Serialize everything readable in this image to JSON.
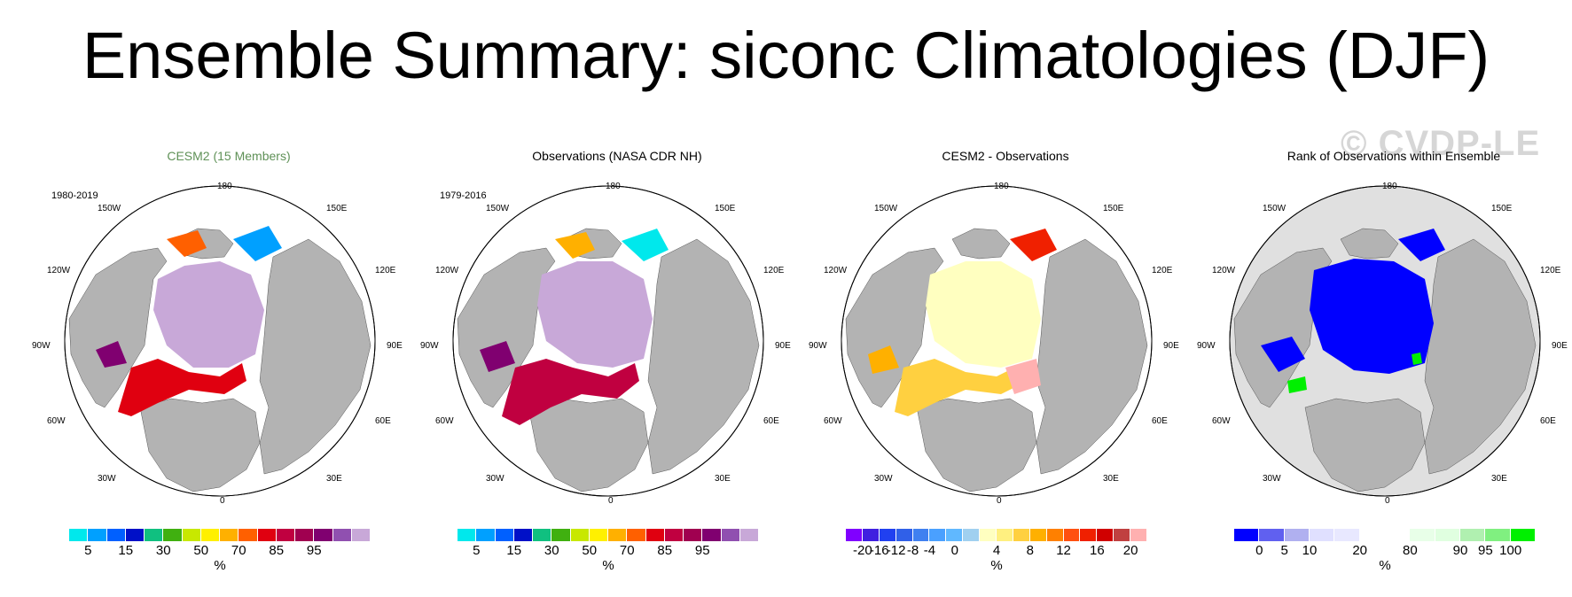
{
  "title": "Ensemble Summary: siconc Climatologies (DJF)",
  "watermark": "© CVDP-LE",
  "lon_labels": {
    "n180": "180",
    "n150w": "150W",
    "n150e": "150E",
    "n120w": "120W",
    "n120e": "120E",
    "n90w": "90W",
    "n90e": "90E",
    "n60w": "60W",
    "n60e": "60E",
    "n30w": "30W",
    "n30e": "30E",
    "n0": "0"
  },
  "colors": {
    "land": "#b3b3b3",
    "ocean": "#ffffff",
    "title_green": "#5f9157"
  },
  "panels": [
    {
      "title": "CESM2 (15 Members)",
      "period": "1980-2019",
      "units": "%",
      "colorbar": [
        "#00e8ec",
        "#00a0ff",
        "#0060ff",
        "#0010c8",
        "#10c080",
        "#40b010",
        "#c8e800",
        "#fff000",
        "#ffb000",
        "#ff6000",
        "#e00010",
        "#c00040",
        "#a00050",
        "#800070",
        "#9050b0",
        "#c8a8d8"
      ],
      "ticks": [
        {
          "pos": 1,
          "label": "5"
        },
        {
          "pos": 3,
          "label": "15"
        },
        {
          "pos": 5,
          "label": "30"
        },
        {
          "pos": 7,
          "label": "50"
        },
        {
          "pos": 9,
          "label": "70"
        },
        {
          "pos": 11,
          "label": "85"
        },
        {
          "pos": 13,
          "label": "95"
        }
      ]
    },
    {
      "title": "Observations (NASA CDR NH)",
      "period": "1979-2016",
      "units": "%",
      "colorbar": [
        "#00e8ec",
        "#00a0ff",
        "#0060ff",
        "#0010c8",
        "#10c080",
        "#40b010",
        "#c8e800",
        "#fff000",
        "#ffb000",
        "#ff6000",
        "#e00010",
        "#c00040",
        "#a00050",
        "#800070",
        "#9050b0",
        "#c8a8d8"
      ],
      "ticks": [
        {
          "pos": 1,
          "label": "5"
        },
        {
          "pos": 3,
          "label": "15"
        },
        {
          "pos": 5,
          "label": "30"
        },
        {
          "pos": 7,
          "label": "50"
        },
        {
          "pos": 9,
          "label": "70"
        },
        {
          "pos": 11,
          "label": "85"
        },
        {
          "pos": 13,
          "label": "95"
        }
      ]
    },
    {
      "title": "CESM2 - Observations",
      "period": "",
      "units": "%",
      "colorbar": [
        "#8000ff",
        "#4020e0",
        "#2040f0",
        "#3060e8",
        "#4080f0",
        "#4aa0ff",
        "#60b8ff",
        "#a0d0f0",
        "#ffffc0",
        "#fff080",
        "#ffd040",
        "#ffb000",
        "#ff8000",
        "#ff5010",
        "#f02000",
        "#d00000",
        "#c04040",
        "#ffb0b0"
      ],
      "ticks": [
        {
          "pos": 1,
          "label": "-20"
        },
        {
          "pos": 2,
          "label": "-16"
        },
        {
          "pos": 3,
          "label": "-12"
        },
        {
          "pos": 4,
          "label": "-8"
        },
        {
          "pos": 5,
          "label": "-4"
        },
        {
          "pos": 6.5,
          "label": "0"
        },
        {
          "pos": 9,
          "label": "4"
        },
        {
          "pos": 11,
          "label": "8"
        },
        {
          "pos": 13,
          "label": "12"
        },
        {
          "pos": 15,
          "label": "16"
        },
        {
          "pos": 17,
          "label": "20"
        }
      ]
    },
    {
      "title": "Rank of Observations within Ensemble",
      "period": "",
      "units": "%",
      "colorbar": [
        "#0000ff",
        "#6060f0",
        "#b0b0f0",
        "#e0e0ff",
        "#e8e8ff",
        "#ffffff",
        "#ffffff",
        "#e8ffe8",
        "#e0ffe0",
        "#b0f0b0",
        "#80f080",
        "#00f000"
      ],
      "ticks": [
        {
          "pos": 1,
          "label": "0"
        },
        {
          "pos": 2,
          "label": "5"
        },
        {
          "pos": 3,
          "label": "10"
        },
        {
          "pos": 5,
          "label": "20"
        },
        {
          "pos": 7,
          "label": "80"
        },
        {
          "pos": 9,
          "label": "90"
        },
        {
          "pos": 10,
          "label": "95"
        },
        {
          "pos": 11,
          "label": "100"
        }
      ]
    }
  ]
}
